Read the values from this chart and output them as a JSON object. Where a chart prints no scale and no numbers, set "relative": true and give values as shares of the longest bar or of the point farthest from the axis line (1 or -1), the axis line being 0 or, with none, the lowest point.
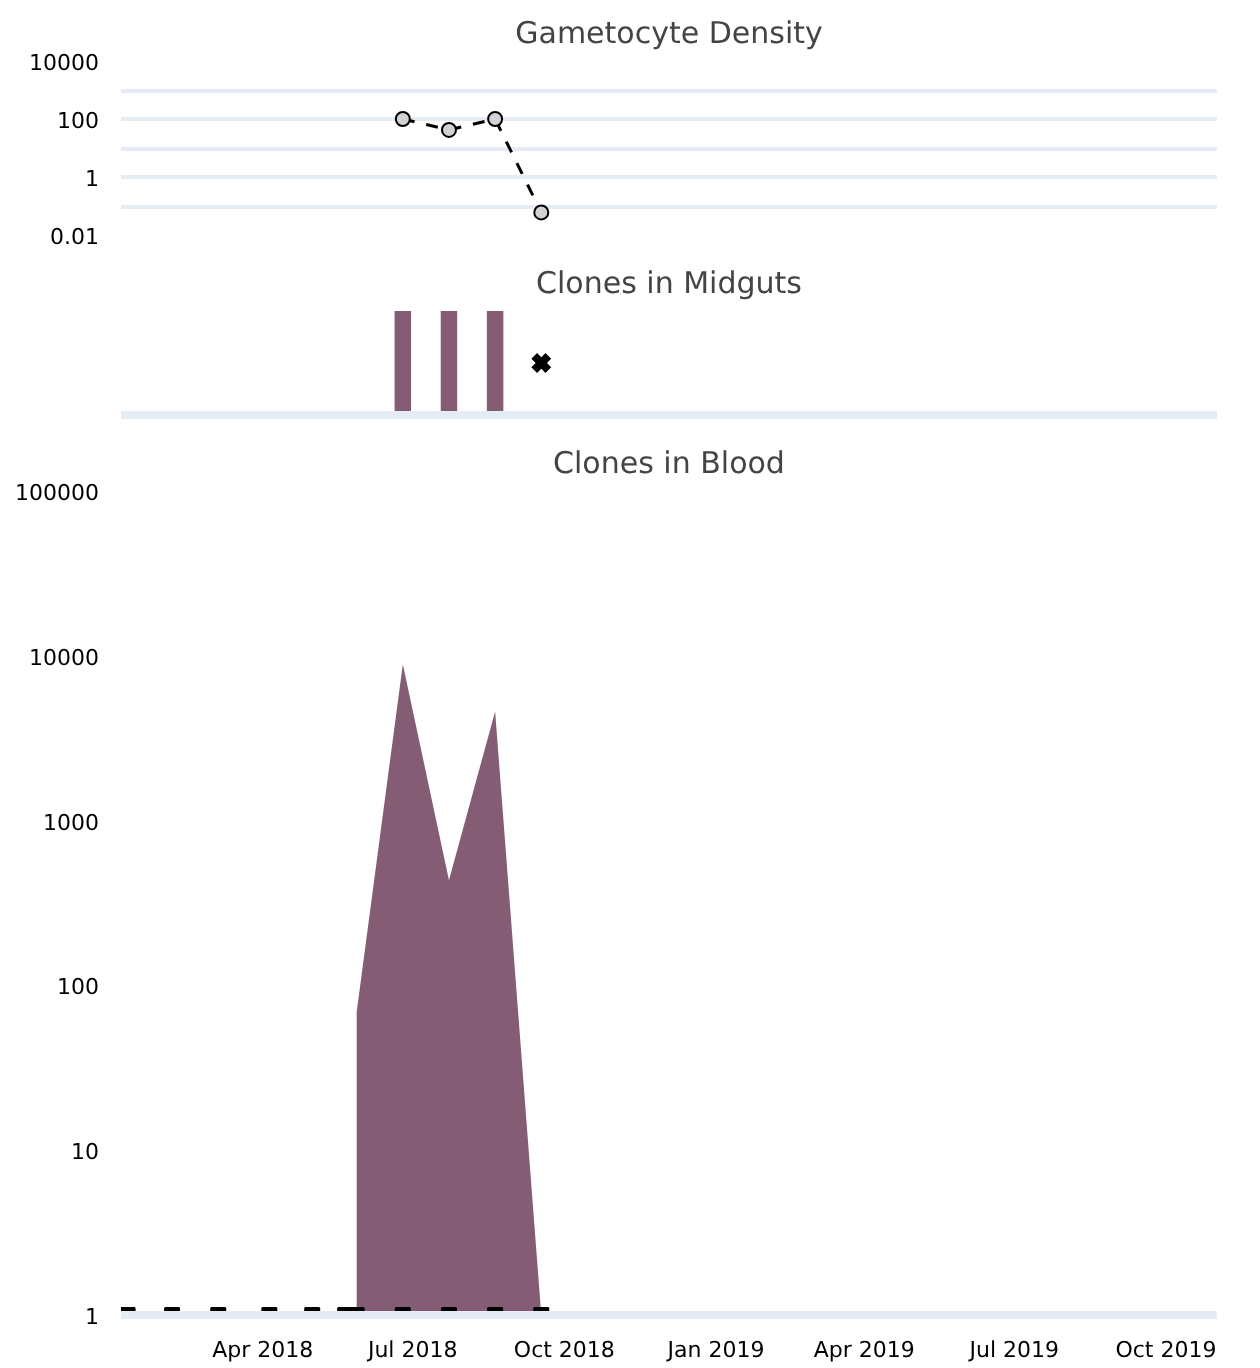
{
  "chart_data": [
    {
      "type": "line",
      "title": "Gametocyte Density",
      "x": [
        "2018-06-25",
        "2018-07-23",
        "2018-08-20",
        "2018-09-17"
      ],
      "values": [
        100,
        42,
        100,
        0.06
      ],
      "color": "#000000",
      "line_style": "dashed",
      "marker": "circle",
      "log": true,
      "xlim": [
        "2018-01-05",
        "2019-11-01"
      ],
      "ylim": [
        0.01,
        10000
      ],
      "yticks": [
        10000,
        {
          "value": 1000,
          "label": null
        },
        100,
        {
          "value": 10,
          "label": null
        },
        1,
        {
          "value": 0.1,
          "label": null
        },
        0.01
      ],
      "grid": "y",
      "tick_labels": "y"
    },
    {
      "type": "bar",
      "title": "Clones in Midguts",
      "relative": true,
      "xlim": [
        "2018-01-05",
        "2019-11-01"
      ],
      "tick_labels": false,
      "series": [
        {
          "type": "bar",
          "color": "#845c74",
          "x": [
            "2018-06-25",
            "2018-07-23",
            "2018-08-20"
          ],
          "values": [
            1,
            1,
            1
          ]
        },
        {
          "type": "scatter",
          "color": "#000000",
          "marker": "cross",
          "x": [
            "2018-09-17"
          ],
          "values": [
            0.5
          ]
        }
      ]
    },
    {
      "type": "area",
      "title": "Clones in Blood",
      "log": true,
      "xlim": [
        "2018-01-05",
        "2019-11-01"
      ],
      "xticks": [
        {
          "value": "2018-04-01",
          "label": "Apr 2018"
        },
        {
          "value": "2018-07-01",
          "label": "Jul 2018"
        },
        {
          "value": "2018-10-01",
          "label": "Oct 2018"
        },
        {
          "value": "2019-01-01",
          "label": "Jan 2019"
        },
        {
          "value": "2019-04-01",
          "label": "Apr 2019"
        },
        {
          "value": "2019-07-01",
          "label": "Jul 2019"
        },
        {
          "value": "2019-10-01",
          "label": "Oct 2019"
        }
      ],
      "ylim": [
        1,
        100000
      ],
      "yticks": [
        1,
        10,
        100,
        1000,
        10000,
        100000
      ],
      "grid": false,
      "series": [
        {
          "type": "area",
          "color": "#845c74",
          "x": [
            "2018-05-28",
            "2018-06-25",
            "2018-07-23",
            "2018-08-20",
            "2018-09-17"
          ],
          "values": [
            69,
            8900,
            435,
            4600,
            1
          ]
        },
        {
          "type": "scatter",
          "color": "#000000",
          "marker": "square",
          "x": [
            "2018-01-09",
            "2018-02-05",
            "2018-03-05",
            "2018-04-05",
            "2018-05-01",
            "2018-05-21",
            "2018-05-28",
            "2018-06-25",
            "2018-07-23",
            "2018-08-20",
            "2018-09-17"
          ],
          "values": [
            1,
            1,
            1,
            1,
            1,
            1,
            1,
            1,
            1,
            1,
            1
          ]
        }
      ]
    }
  ]
}
